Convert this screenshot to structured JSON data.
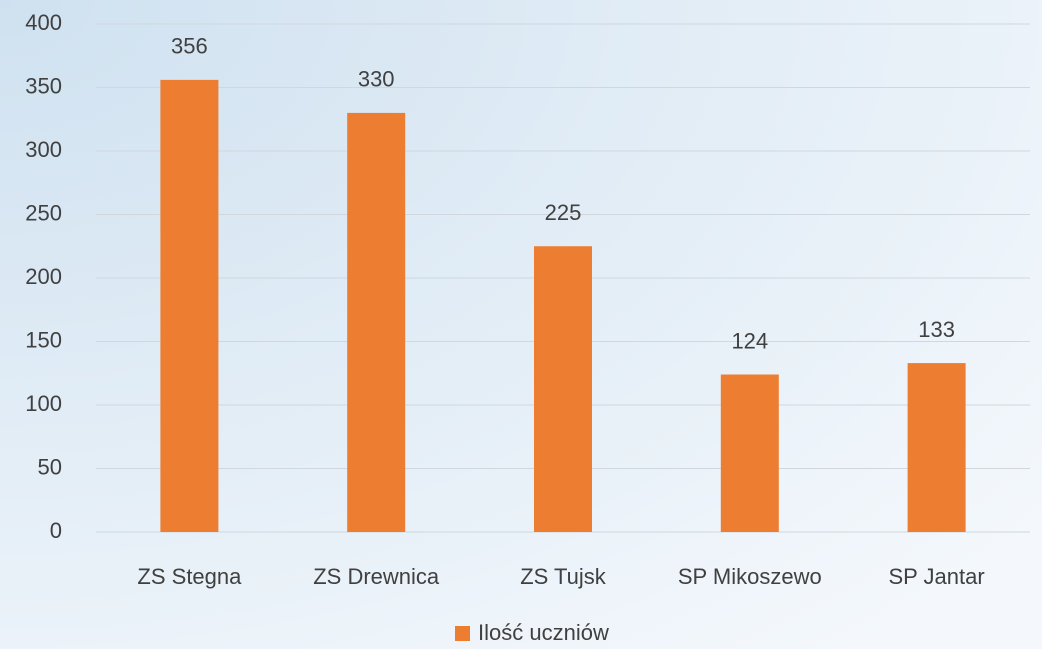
{
  "chart_data": {
    "type": "bar",
    "categories": [
      "ZS Stegna",
      "ZS Drewnica",
      "ZS Tujsk",
      "SP Mikoszewo",
      "SP Jantar"
    ],
    "series": [
      {
        "name": "Ilość uczniów",
        "color": "#ed7d31",
        "values": [
          356,
          330,
          225,
          124,
          133
        ]
      }
    ],
    "ylim": [
      0,
      400
    ],
    "yticks": [
      0,
      50,
      100,
      150,
      200,
      250,
      300,
      350,
      400
    ],
    "grid": true,
    "legend": "bottom"
  }
}
